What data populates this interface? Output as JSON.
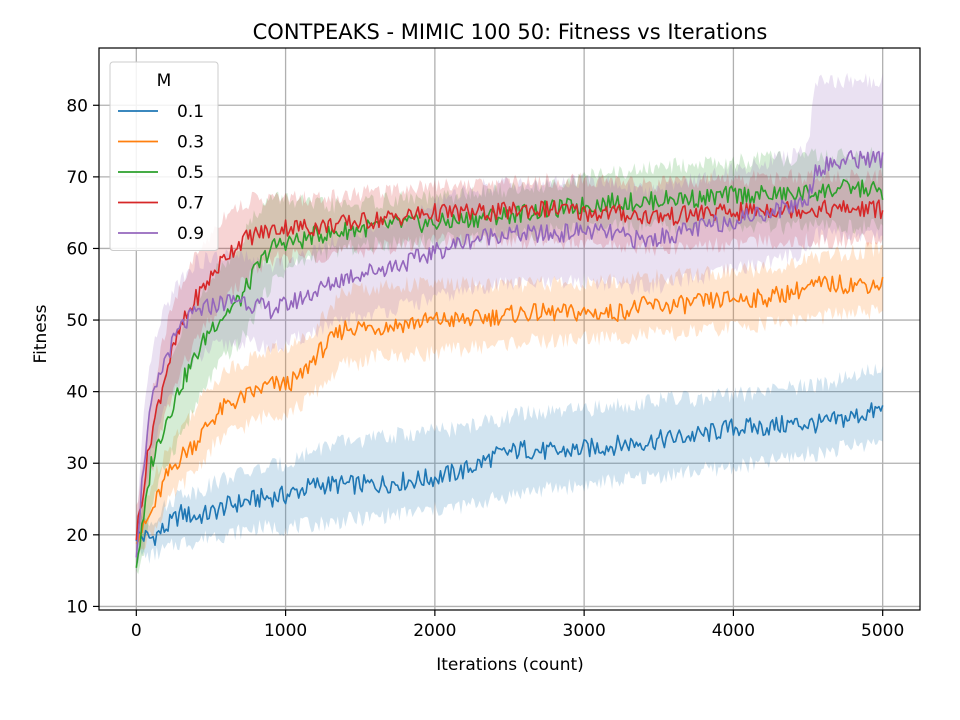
{
  "chart_data": {
    "type": "line",
    "title": "CONTPEAKS - MIMIC 100 50: Fitness vs Iterations",
    "xlabel": "Iterations (count)",
    "ylabel": "Fitness",
    "xlim": [
      -250,
      5250
    ],
    "ylim": [
      9.5,
      88
    ],
    "xticks": [
      0,
      1000,
      2000,
      3000,
      4000,
      5000
    ],
    "yticks": [
      10,
      20,
      30,
      40,
      50,
      60,
      70,
      80
    ],
    "grid": true,
    "legend": {
      "title": "M",
      "placement": "top-left"
    },
    "bands": "shaded min-max range around each series",
    "series": [
      {
        "name": "0.1",
        "color": "#1f77b4",
        "x": [
          0,
          100,
          200,
          300,
          400,
          500,
          600,
          800,
          1000,
          1200,
          1400,
          1600,
          1800,
          2000,
          2200,
          2400,
          2600,
          2800,
          3000,
          3200,
          3400,
          3600,
          3800,
          4000,
          4200,
          4400,
          4600,
          4800,
          5000
        ],
        "y": [
          20,
          19.5,
          21,
          23,
          22.5,
          23,
          24,
          25,
          25.5,
          27,
          27,
          27,
          27.5,
          28,
          29,
          31,
          32,
          31.5,
          32,
          32.5,
          33,
          33.5,
          34,
          35,
          35,
          35.5,
          35.5,
          36.5,
          37.5
        ],
        "lower": [
          17,
          17,
          18,
          19,
          19,
          20,
          20,
          21,
          21,
          21.5,
          22,
          22.5,
          23,
          23.5,
          24,
          25,
          26,
          26.5,
          27,
          27.5,
          28,
          28.5,
          29,
          29.5,
          30,
          31,
          31.5,
          32.5,
          33
        ],
        "upper": [
          23,
          22,
          24,
          26,
          26,
          27,
          28,
          29,
          30,
          32,
          33,
          33.5,
          34,
          34.5,
          35,
          36,
          37,
          37,
          37.5,
          38,
          38.5,
          39,
          39,
          39.5,
          40,
          40.5,
          41,
          42.5,
          43
        ]
      },
      {
        "name": "0.3",
        "color": "#ff7f0e",
        "x": [
          0,
          50,
          100,
          200,
          300,
          400,
          500,
          600,
          700,
          800,
          900,
          1000,
          1100,
          1200,
          1300,
          1400,
          1500,
          1600,
          1800,
          2000,
          2200,
          2400,
          2600,
          2800,
          3000,
          3200,
          3400,
          3600,
          3800,
          4000,
          4200,
          4400,
          4600,
          4800,
          5000
        ],
        "y": [
          20,
          21,
          23,
          28,
          31,
          33,
          36,
          38,
          39,
          40,
          41,
          41,
          42,
          45,
          47,
          49,
          49,
          49,
          49.5,
          50,
          50,
          50.5,
          51,
          51,
          51,
          51,
          52,
          52,
          52.5,
          53,
          53,
          54,
          55,
          55,
          55
        ],
        "lower": [
          18,
          19,
          20,
          24,
          27,
          29,
          32,
          34,
          35,
          36,
          37,
          37,
          38,
          40,
          42,
          44,
          44,
          45,
          45,
          45.5,
          46,
          46.5,
          47,
          47,
          47.5,
          47.5,
          48,
          48,
          48.5,
          49,
          49.5,
          50,
          50.5,
          51,
          51
        ],
        "upper": [
          22,
          24,
          27,
          32,
          35,
          38,
          41,
          43,
          44,
          45,
          46,
          46,
          47,
          49,
          52,
          54,
          54.5,
          54.5,
          55,
          55,
          55,
          55,
          55,
          55,
          55,
          55.5,
          56,
          56,
          56.5,
          57,
          57,
          58,
          59,
          59.5,
          60
        ]
      },
      {
        "name": "0.5",
        "color": "#2ca02c",
        "x": [
          0,
          50,
          100,
          200,
          300,
          400,
          500,
          600,
          700,
          800,
          900,
          1000,
          1100,
          1200,
          1300,
          1400,
          1600,
          1800,
          2000,
          2200,
          2400,
          2600,
          2800,
          3000,
          3200,
          3400,
          3600,
          3800,
          4000,
          4200,
          4400,
          4600,
          4800,
          5000
        ],
        "y": [
          16,
          22,
          30,
          36,
          41,
          45,
          49,
          51,
          53,
          57,
          60,
          61,
          61,
          62,
          62,
          62.5,
          63,
          63.5,
          63.5,
          64,
          64.5,
          65,
          65.5,
          66,
          66.5,
          66.5,
          67,
          67,
          67.5,
          67.5,
          67.5,
          68,
          68.5,
          68
        ],
        "lower": [
          14,
          18,
          24,
          30,
          34,
          38,
          42,
          45,
          47,
          51,
          55,
          57,
          58,
          59,
          59.5,
          60,
          60.5,
          61,
          61,
          61.5,
          62,
          62,
          62.5,
          62.5,
          63,
          63,
          63,
          63,
          63,
          63,
          63,
          63,
          63,
          63
        ],
        "upper": [
          18,
          26,
          35,
          42,
          48,
          52,
          56,
          58,
          61,
          65,
          67,
          67,
          66.5,
          66,
          66,
          66,
          66.5,
          67,
          67,
          67.5,
          68,
          68.5,
          69,
          70,
          70.5,
          71,
          71.5,
          72,
          72,
          72.5,
          72.5,
          73,
          73,
          73
        ]
      },
      {
        "name": "0.7",
        "color": "#d62728",
        "x": [
          0,
          50,
          100,
          200,
          300,
          400,
          500,
          600,
          700,
          800,
          900,
          1000,
          1200,
          1400,
          1600,
          1800,
          2000,
          2200,
          2400,
          2600,
          2800,
          3000,
          3200,
          3400,
          3600,
          3800,
          4000,
          4200,
          4400,
          4600,
          4800,
          5000
        ],
        "y": [
          20,
          27,
          34,
          43,
          49,
          53,
          56,
          59,
          61,
          62,
          62.5,
          63,
          63,
          63.5,
          64,
          64.5,
          65,
          65,
          65,
          65.5,
          65.5,
          65,
          65,
          64.5,
          64.5,
          65,
          65,
          65.5,
          65.5,
          65.5,
          65.5,
          65.5
        ],
        "lower": [
          17,
          23,
          29,
          37,
          43,
          47,
          50,
          53,
          55,
          57,
          58,
          59,
          59,
          59.5,
          60,
          60.5,
          61,
          61,
          61,
          61,
          61,
          60.5,
          60.5,
          60,
          60,
          60.5,
          60.5,
          61,
          61,
          61,
          61,
          61
        ],
        "upper": [
          23,
          31,
          39,
          49,
          55,
          59,
          62,
          65,
          66,
          67,
          67,
          67,
          67,
          67.5,
          68,
          68.5,
          69,
          69,
          69,
          69.5,
          69.5,
          69.5,
          69.5,
          69,
          69,
          69.5,
          69.5,
          70,
          70,
          70,
          70,
          70
        ]
      },
      {
        "name": "0.9",
        "color": "#9467bd",
        "x": [
          0,
          50,
          100,
          200,
          300,
          400,
          500,
          600,
          700,
          800,
          900,
          1000,
          1100,
          1200,
          1300,
          1400,
          1600,
          1800,
          2000,
          2200,
          2400,
          2600,
          2800,
          3000,
          3200,
          3400,
          3600,
          3800,
          4000,
          4200,
          4400,
          4500,
          4550,
          4600,
          4800,
          5000
        ],
        "y": [
          18,
          30,
          38,
          45,
          49,
          51,
          52,
          52.5,
          53,
          52,
          51.5,
          52,
          53,
          54,
          55,
          56,
          57,
          58,
          59.5,
          61,
          62,
          62,
          62,
          62.5,
          62,
          61,
          62,
          63,
          64,
          65,
          66,
          67,
          71,
          71.5,
          72.5,
          72.5
        ],
        "lower": [
          15,
          24,
          31,
          38,
          42,
          44,
          46,
          46.5,
          47,
          46.5,
          46,
          46.5,
          47.5,
          48.5,
          49,
          50,
          51,
          52,
          53,
          54,
          55,
          55,
          55,
          55.5,
          55,
          54.5,
          55,
          56,
          57,
          58,
          59,
          60,
          62,
          62,
          62,
          62
        ],
        "upper": [
          21,
          36,
          45,
          52,
          56,
          58,
          58.5,
          59,
          59,
          58,
          57.5,
          58,
          59,
          60,
          61,
          62,
          63,
          64,
          66,
          68,
          69,
          69,
          69,
          69.5,
          69,
          68,
          69,
          70,
          71,
          72,
          73,
          74,
          83.5,
          83.5,
          83.5,
          83.5
        ]
      }
    ]
  }
}
